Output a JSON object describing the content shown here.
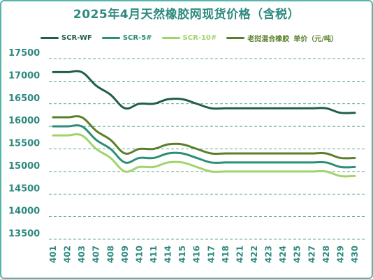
{
  "chart_data": {
    "type": "line",
    "title": "2025年4月天然橡胶网现货价格（含税）",
    "xlabel": "",
    "ylabel": "",
    "ylim": [
      13500,
      17500
    ],
    "yticks": [
      13500,
      14000,
      14500,
      15000,
      15500,
      16000,
      16500,
      17000,
      17500
    ],
    "grid": true,
    "legend_position": "top",
    "categories": [
      "401",
      "402",
      "403",
      "407",
      "408",
      "409",
      "410",
      "411",
      "414",
      "415",
      "416",
      "417",
      "418",
      "421",
      "422",
      "423",
      "424",
      "425",
      "427",
      "428",
      "429",
      "430"
    ],
    "series": [
      {
        "name": "SCR-WF",
        "color": "#1f5e48",
        "values": [
          17200,
          17200,
          17200,
          16900,
          16700,
          16400,
          16500,
          16500,
          16600,
          16600,
          16500,
          16400,
          16400,
          16400,
          16400,
          16400,
          16400,
          16400,
          16400,
          16400,
          16300,
          16300
        ]
      },
      {
        "name": "SCR-5#",
        "color": "#2a8e78",
        "values": [
          16000,
          16000,
          16000,
          15700,
          15500,
          15200,
          15300,
          15300,
          15400,
          15400,
          15300,
          15200,
          15200,
          15200,
          15200,
          15200,
          15200,
          15200,
          15200,
          15200,
          15100,
          15100
        ]
      },
      {
        "name": "SCR-10#",
        "color": "#9fd46a",
        "values": [
          15800,
          15800,
          15800,
          15500,
          15300,
          15000,
          15100,
          15100,
          15200,
          15200,
          15100,
          15000,
          15000,
          15000,
          15000,
          15000,
          15000,
          15000,
          15000,
          15000,
          14900,
          14900
        ]
      },
      {
        "name": "老挝混合橡胶",
        "color": "#5a7f2a",
        "values": [
          16200,
          16200,
          16200,
          15900,
          15700,
          15400,
          15500,
          15500,
          15600,
          15600,
          15500,
          15400,
          15400,
          15400,
          15400,
          15400,
          15400,
          15400,
          15400,
          15400,
          15300,
          15300
        ]
      }
    ],
    "unit_label": "单价（元/吨）"
  }
}
